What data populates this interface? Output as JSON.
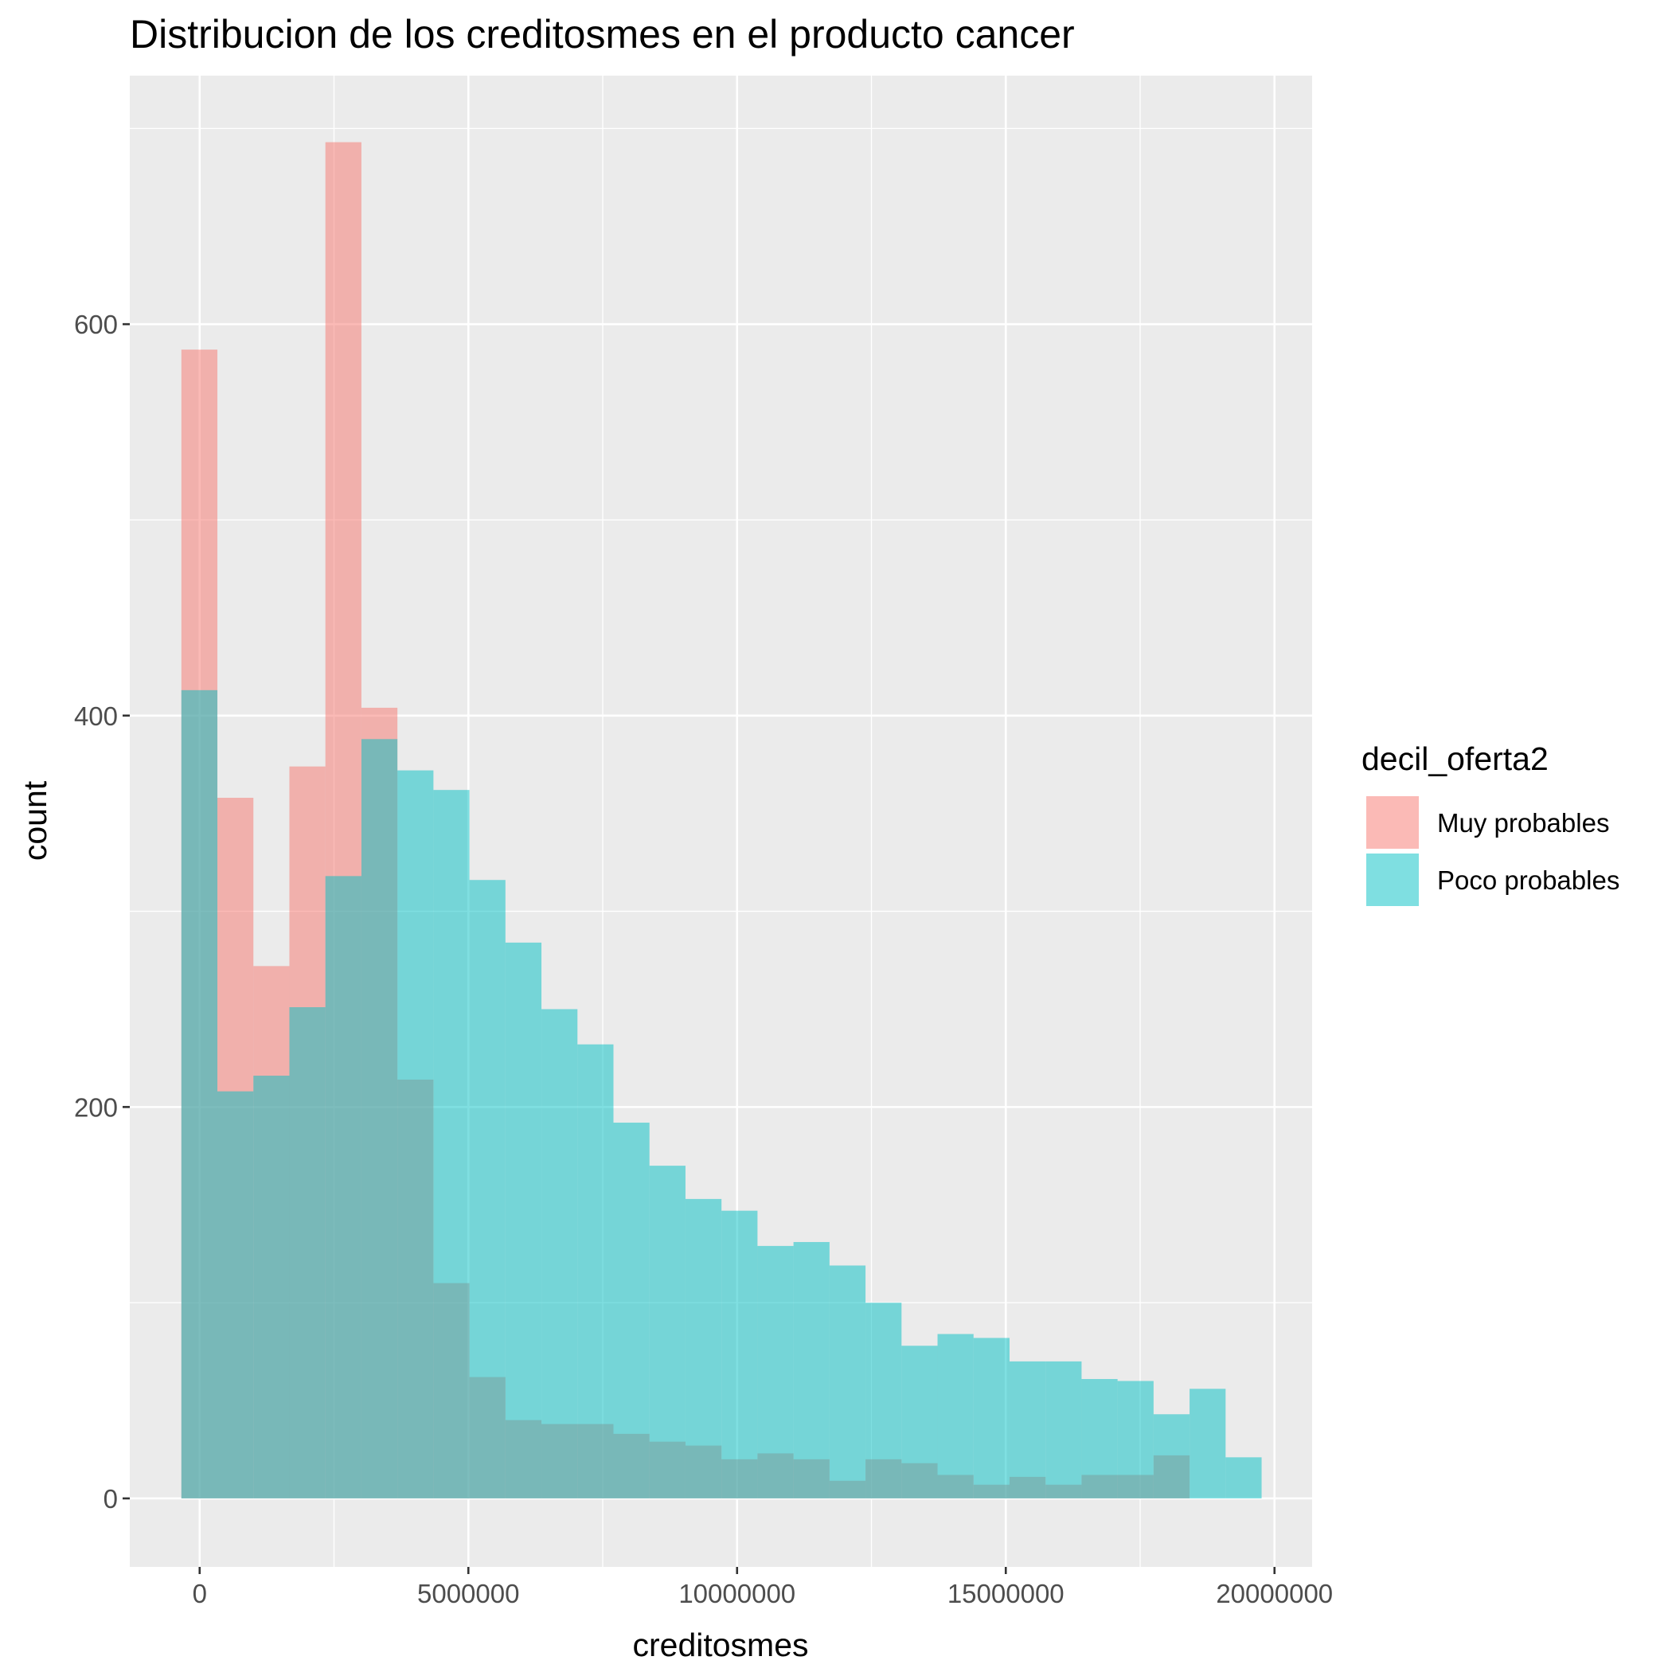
{
  "chart_data": {
    "type": "histogram",
    "title": "Distribucion de los  creditosmes en el producto cancer",
    "xlabel": "creditosmes",
    "ylabel": "count",
    "xlim": [
      -1300000,
      20700000
    ],
    "ylim": [
      -35,
      727
    ],
    "x_ticks": [
      0,
      5000000,
      10000000,
      15000000,
      20000000
    ],
    "x_tick_labels": [
      "0",
      "5000000",
      "10000000",
      "15000000",
      "20000000"
    ],
    "y_ticks": [
      0,
      200,
      400,
      600
    ],
    "y_tick_labels": [
      "0",
      "200",
      "400",
      "600"
    ],
    "bin_start": -340000,
    "bin_width": 670000,
    "legend": {
      "title": "decil_oferta2",
      "position": "right"
    },
    "series": [
      {
        "name": "Muy probables",
        "color": "#F8766D",
        "opacity": 0.5,
        "values": [
          587,
          358,
          272,
          374,
          693,
          404,
          214,
          110,
          62,
          40,
          38,
          38,
          33,
          29,
          27,
          20,
          23,
          20,
          9,
          20,
          18,
          12,
          7,
          11,
          7,
          12,
          12,
          22,
          0
        ]
      },
      {
        "name": "Poco probables",
        "color": "#00BFC4",
        "opacity": 0.5,
        "values": [
          413,
          208,
          216,
          251,
          318,
          388,
          372,
          362,
          316,
          284,
          250,
          232,
          192,
          170,
          153,
          147,
          129,
          131,
          119,
          100,
          78,
          84,
          82,
          70,
          70,
          61,
          60,
          43,
          56,
          21
        ]
      }
    ]
  }
}
